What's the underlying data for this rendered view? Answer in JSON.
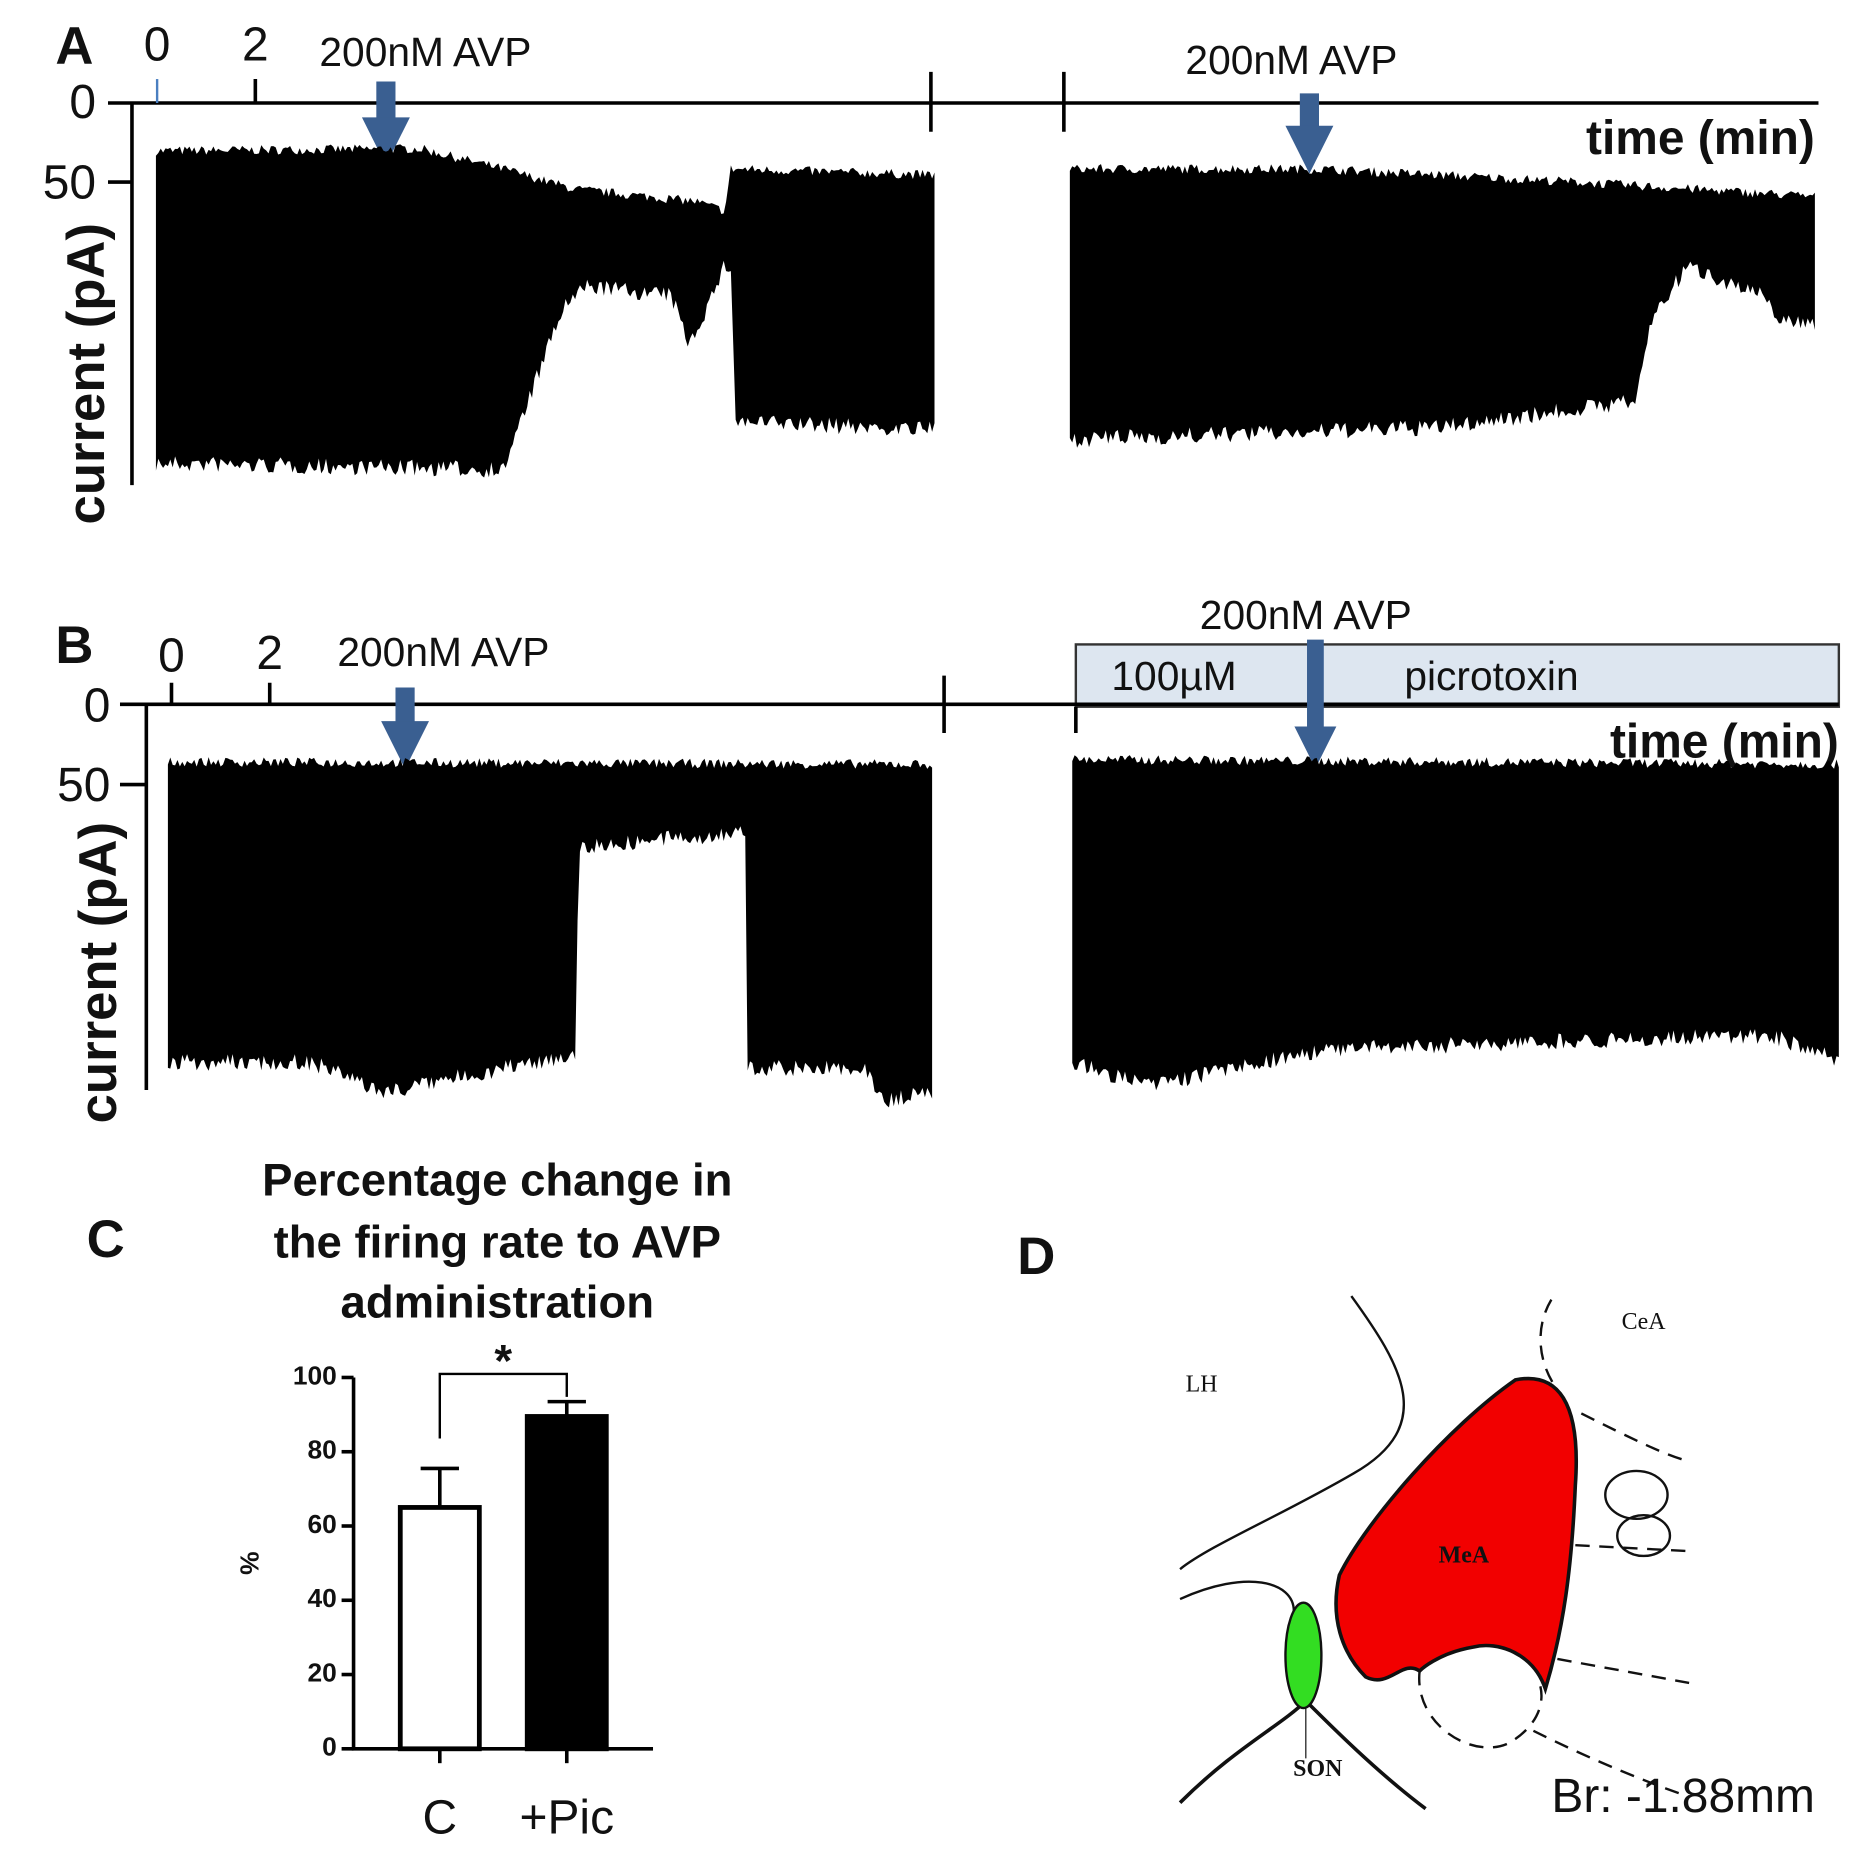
{
  "panel_a": {
    "label": "A",
    "time_ticks": [
      0,
      2
    ],
    "current_ticks": [
      0,
      50
    ],
    "ylabel": "current (pA)",
    "xlabel": "time (min)",
    "drug_labels": [
      "200nM AVP",
      "200nM AVP"
    ]
  },
  "panel_b": {
    "label": "B",
    "time_ticks": [
      0,
      2
    ],
    "current_ticks": [
      0,
      50
    ],
    "ylabel": "current (pA)",
    "xlabel": "time (min)",
    "drug_labels": [
      "200nM AVP",
      "200nM AVP"
    ],
    "bath_labels": [
      "100µM",
      "picrotoxin"
    ]
  },
  "chart_data": {
    "type": "bar",
    "panel_label": "C",
    "title": [
      "Percentage change in",
      "the firing rate to AVP",
      "administration"
    ],
    "categories": [
      "C",
      "+Pic"
    ],
    "values": [
      65,
      89.5
    ],
    "errors": [
      10.5,
      4
    ],
    "colors": [
      "#ffffff",
      "#000000"
    ],
    "ylabel": "%",
    "ylim": [
      0,
      100
    ],
    "yticks": [
      0,
      20,
      40,
      60,
      80,
      100
    ],
    "annotation": "*"
  },
  "panel_d": {
    "label": "D",
    "regions": [
      "LH",
      "CeA",
      "MeA",
      "SON"
    ],
    "caption": "Br: -1.88mm"
  }
}
